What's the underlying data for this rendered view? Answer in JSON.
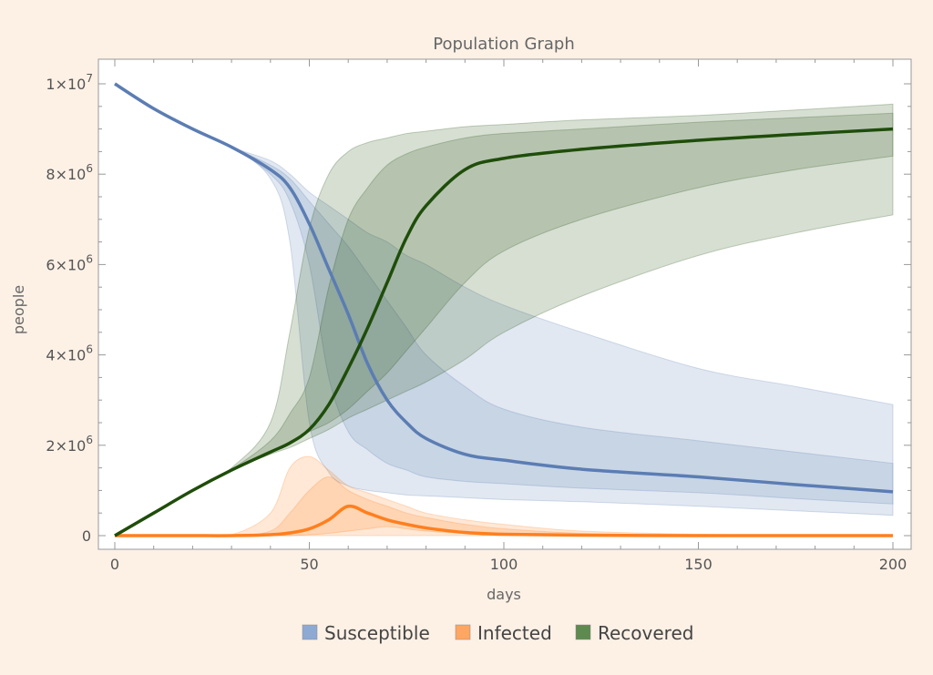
{
  "chart_data": {
    "type": "area",
    "title": "Population Graph",
    "xlabel": "days",
    "ylabel": "people",
    "xlim": [
      0,
      200
    ],
    "ylim": [
      0,
      10000000
    ],
    "x_ticks": [
      0,
      50,
      100,
      150,
      200
    ],
    "y_ticks": [
      {
        "value": 0,
        "mantissa": "0",
        "exp": ""
      },
      {
        "value": 2000000,
        "mantissa": "2×10",
        "exp": "6"
      },
      {
        "value": 4000000,
        "mantissa": "4×10",
        "exp": "6"
      },
      {
        "value": 6000000,
        "mantissa": "6×10",
        "exp": "6"
      },
      {
        "value": 8000000,
        "mantissa": "8×10",
        "exp": "6"
      },
      {
        "value": 10000000,
        "mantissa": "1×10",
        "exp": "7"
      }
    ],
    "grid": false,
    "legend_position": "bottom",
    "x": [
      0,
      10,
      20,
      30,
      40,
      45,
      50,
      55,
      60,
      65,
      70,
      75,
      80,
      90,
      100,
      120,
      150,
      175,
      200
    ],
    "series": [
      {
        "name": "Susceptible",
        "color": "#5b7db3",
        "legend_color": "#8eaad3",
        "median": [
          10000000,
          9450000,
          9000000,
          8600000,
          8100000,
          7700000,
          6900000,
          5900000,
          4900000,
          3800000,
          3000000,
          2500000,
          2150000,
          1800000,
          1670000,
          1470000,
          1300000,
          1130000,
          970000
        ],
        "outer_band": {
          "lower": [
            10000000,
            9450000,
            9000000,
            8600000,
            7900000,
            6500000,
            2500000,
            1400000,
            1100000,
            1000000,
            950000,
            900000,
            880000,
            840000,
            800000,
            750000,
            650000,
            550000,
            450000
          ],
          "upper": [
            10000000,
            9450000,
            9000000,
            8600000,
            8300000,
            8000000,
            7600000,
            7300000,
            7000000,
            6700000,
            6500000,
            6200000,
            6000000,
            5500000,
            5100000,
            4500000,
            3700000,
            3300000,
            2900000
          ]
        },
        "inner_band": {
          "lower": [
            10000000,
            9450000,
            9000000,
            8600000,
            8000000,
            7400000,
            6000000,
            3500000,
            2300000,
            1900000,
            1600000,
            1450000,
            1300000,
            1200000,
            1150000,
            1050000,
            950000,
            820000,
            700000
          ],
          "upper": [
            10000000,
            9450000,
            9000000,
            8600000,
            8200000,
            7900000,
            7400000,
            6900000,
            6400000,
            5800000,
            5200000,
            4600000,
            4000000,
            3300000,
            2800000,
            2400000,
            2100000,
            1850000,
            1600000
          ]
        }
      },
      {
        "name": "Infected",
        "color": "#ff7f1e",
        "legend_color": "#ffa662",
        "median": [
          0,
          0,
          0,
          0,
          20000,
          60000,
          150000,
          350000,
          650000,
          500000,
          350000,
          250000,
          170000,
          70000,
          30000,
          10000,
          0,
          0,
          0
        ],
        "outer_band": {
          "lower": [
            0,
            0,
            0,
            0,
            0,
            0,
            0,
            0,
            0,
            0,
            0,
            0,
            0,
            0,
            0,
            0,
            0,
            0,
            0
          ],
          "upper": [
            0,
            0,
            0,
            20000,
            500000,
            1500000,
            1750000,
            1450000,
            1100000,
            950000,
            800000,
            650000,
            500000,
            350000,
            250000,
            100000,
            30000,
            10000,
            0
          ]
        },
        "inner_band": {
          "lower": [
            0,
            0,
            0,
            0,
            0,
            0,
            20000,
            50000,
            100000,
            150000,
            200000,
            150000,
            100000,
            50000,
            30000,
            10000,
            0,
            0,
            0
          ],
          "upper": [
            0,
            0,
            0,
            0,
            100000,
            500000,
            1000000,
            1300000,
            1000000,
            800000,
            650000,
            500000,
            400000,
            250000,
            150000,
            50000,
            10000,
            0,
            0
          ]
        }
      },
      {
        "name": "Recovered",
        "color": "#1f4d0a",
        "legend_color": "#5f8a4f",
        "median": [
          0,
          500000,
          1000000,
          1450000,
          1850000,
          2050000,
          2350000,
          2900000,
          3700000,
          4600000,
          5600000,
          6600000,
          7300000,
          8100000,
          8350000,
          8550000,
          8750000,
          8880000,
          9000000
        ],
        "outer_band": {
          "lower": [
            0,
            500000,
            1000000,
            1450000,
            1800000,
            1950000,
            2150000,
            2350000,
            2600000,
            2800000,
            3000000,
            3200000,
            3400000,
            3900000,
            4500000,
            5300000,
            6200000,
            6700000,
            7100000
          ],
          "upper": [
            0,
            500000,
            1000000,
            1500000,
            2500000,
            4500000,
            6800000,
            8000000,
            8500000,
            8700000,
            8800000,
            8900000,
            8950000,
            9050000,
            9100000,
            9200000,
            9300000,
            9420000,
            9550000
          ]
        },
        "inner_band": {
          "lower": [
            0,
            500000,
            1000000,
            1450000,
            1850000,
            2050000,
            2300000,
            2500000,
            2800000,
            3200000,
            3600000,
            4100000,
            4600000,
            5600000,
            6300000,
            7000000,
            7700000,
            8100000,
            8400000
          ],
          "upper": [
            0,
            500000,
            1000000,
            1470000,
            2100000,
            2700000,
            3500000,
            5500000,
            7000000,
            7700000,
            8200000,
            8450000,
            8600000,
            8800000,
            8900000,
            9000000,
            9150000,
            9250000,
            9350000
          ]
        }
      }
    ]
  }
}
